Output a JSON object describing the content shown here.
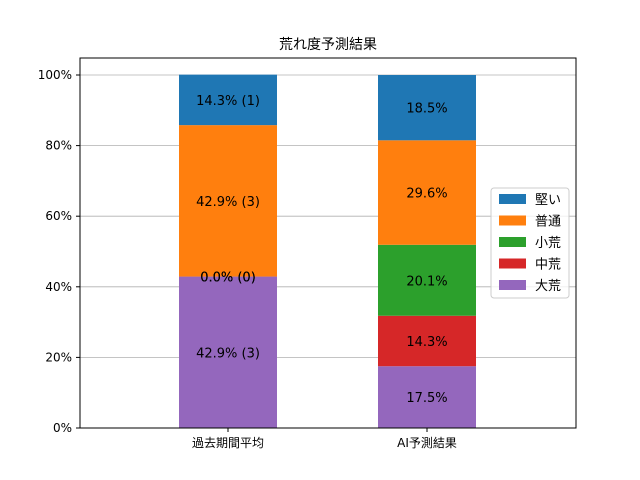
{
  "chart_data": {
    "type": "bar",
    "stacked": true,
    "title": "荒れ度予測結果",
    "xlabel": "",
    "ylabel": "",
    "categories": [
      "過去期間平均",
      "AI予測結果"
    ],
    "ylim": [
      0,
      100
    ],
    "yticks": [
      "0%",
      "20%",
      "40%",
      "60%",
      "80%",
      "100%"
    ],
    "grid": "horizontal",
    "legend_position": "center-right",
    "series": [
      {
        "name": "大荒",
        "color": "#9467bd",
        "values": [
          42.9,
          17.5
        ],
        "labels": [
          "42.9% (3)",
          "17.5%"
        ]
      },
      {
        "name": "中荒",
        "color": "#d62728",
        "values": [
          0.0,
          14.3
        ],
        "labels": [
          "0.0% (0)",
          "14.3%"
        ]
      },
      {
        "name": "小荒",
        "color": "#2ca02c",
        "values": [
          0.0,
          20.1
        ],
        "labels": [
          "0.0% (0)",
          "20.1%"
        ]
      },
      {
        "name": "普通",
        "color": "#ff7f0e",
        "values": [
          42.9,
          29.6
        ],
        "labels": [
          "42.9% (3)",
          "29.6%"
        ]
      },
      {
        "name": "堅い",
        "color": "#1f77b4",
        "values": [
          14.3,
          18.5
        ],
        "labels": [
          "14.3% (1)",
          "18.5%"
        ]
      }
    ],
    "legend_order": [
      "堅い",
      "普通",
      "小荒",
      "中荒",
      "大荒"
    ]
  }
}
